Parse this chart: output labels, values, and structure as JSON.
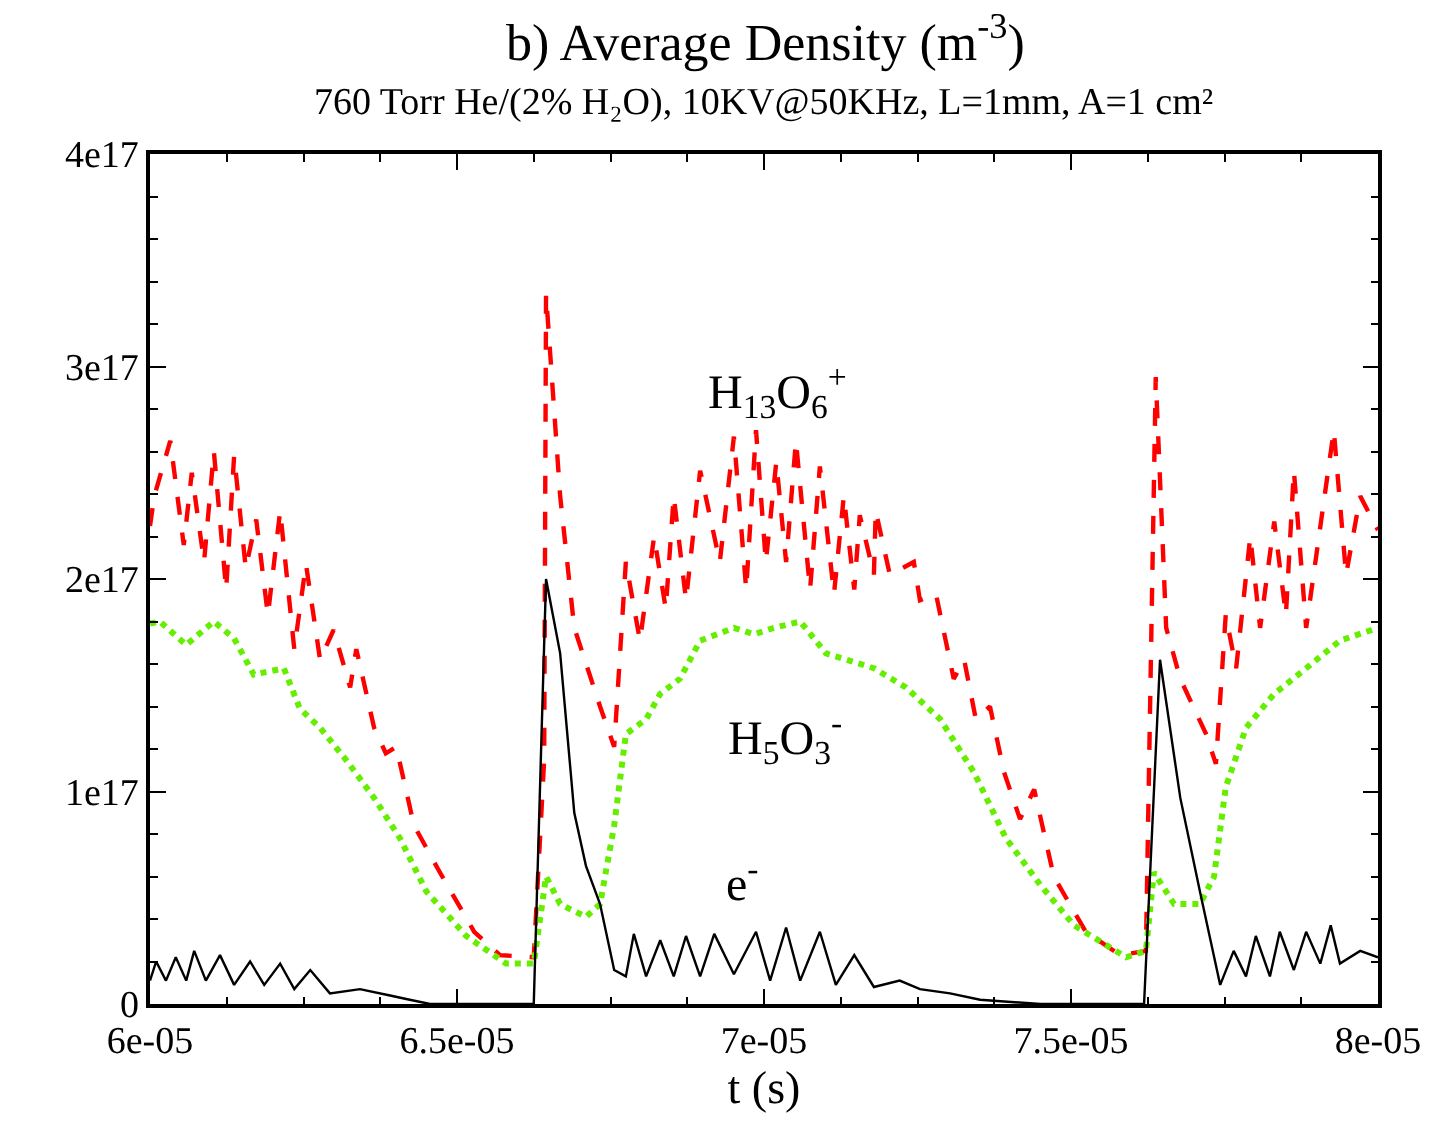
{
  "chart_data": {
    "type": "line",
    "title": "b) Average Density (m$^{-3}$)",
    "subtitle": "760 Torr He/(2% H₂O), 10KV@50KHz, L=1mm, A=1 cm²",
    "xlabel": "t (s)",
    "xlim": [
      6e-05,
      8e-05
    ],
    "xticks": [
      {
        "value": 6e-05,
        "label": "6e-05"
      },
      {
        "value": 6.5e-05,
        "label": "6.5e-05"
      },
      {
        "value": 7e-05,
        "label": "7e-05"
      },
      {
        "value": 7.5e-05,
        "label": "7.5e-05"
      },
      {
        "value": 8e-05,
        "label": "8e-05"
      }
    ],
    "ylim": [
      0,
      4e+17
    ],
    "yticks": [
      0,
      {
        "value": 1e+17,
        "label": "1e17"
      },
      {
        "value": 2e+17,
        "label": "2e17"
      },
      {
        "value": 3e+17,
        "label": "3e17"
      },
      {
        "value": 4e+17,
        "label": "4e17"
      }
    ],
    "grid": false,
    "legend": false,
    "marker": "none",
    "series": [
      {
        "name": "H$_{13}$O$_{6}$$^{+}$",
        "color": "#ff0000",
        "line_style": "dashed",
        "x": [
          6e-05,
          6.007e-05,
          6.033e-05,
          6.055e-05,
          6.068e-05,
          6.088e-05,
          6.104e-05,
          6.124e-05,
          6.137e-05,
          6.156e-05,
          6.173e-05,
          6.192e-05,
          6.212e-05,
          6.235e-05,
          6.254e-05,
          6.277e-05,
          6.299e-05,
          6.326e-05,
          6.336e-05,
          6.365e-05,
          6.384e-05,
          6.401e-05,
          6.43e-05,
          6.472e-05,
          6.528e-05,
          6.57e-05,
          6.625e-05,
          6.642e-05,
          6.645e-05,
          6.668e-05,
          6.691e-05,
          6.733e-05,
          6.756e-05,
          6.775e-05,
          6.798e-05,
          6.821e-05,
          6.84e-05,
          6.853e-05,
          6.873e-05,
          6.896e-05,
          6.928e-05,
          6.951e-05,
          6.971e-05,
          6.987e-05,
          7.003e-05,
          7.02e-05,
          7.036e-05,
          7.052e-05,
          7.075e-05,
          7.091e-05,
          7.114e-05,
          7.13e-05,
          7.147e-05,
          7.156e-05,
          7.179e-05,
          7.182e-05,
          7.205e-05,
          7.244e-05,
          7.254e-05,
          7.28e-05,
          7.309e-05,
          7.326e-05,
          7.345e-05,
          7.368e-05,
          7.391e-05,
          7.417e-05,
          7.44e-05,
          7.472e-05,
          7.524e-05,
          7.58e-05,
          7.622e-05,
          7.638e-05,
          7.655e-05,
          7.678e-05,
          7.72e-05,
          7.736e-05,
          7.752e-05,
          7.769e-05,
          7.792e-05,
          7.808e-05,
          7.831e-05,
          7.85e-05,
          7.863e-05,
          7.883e-05,
          7.928e-05,
          7.948e-05,
          7.971e-05,
          8e-05
        ],
        "values": [
          2.25e+17,
          2.39e+17,
          2.65e+17,
          2.16e+17,
          2.5e+17,
          2.08e+17,
          2.6e+17,
          1.95e+17,
          2.58e+17,
          2.05e+17,
          2.28e+17,
          1.83e+17,
          2.32e+17,
          1.67e+17,
          2.07e+17,
          1.62e+17,
          1.76e+17,
          1.49e+17,
          1.67e+17,
          1.3e+17,
          1.18e+17,
          1.21e+17,
          8.4e+16,
          6.2e+16,
          3.4e+16,
          2.3e+16,
          2.2e+16,
          1.15e+17,
          3.34e+17,
          2.39e+17,
          1.77e+17,
          1.4e+17,
          1.21e+17,
          2.08e+17,
          1.71e+17,
          2.2e+17,
          1.86e+17,
          2.39e+17,
          1.9e+17,
          2.51e+17,
          2.08e+17,
          2.67e+17,
          1.95e+17,
          2.7e+17,
          2.08e+17,
          2.55e+17,
          2.08e+17,
          2.65e+17,
          1.95e+17,
          2.53e+17,
          1.93e+17,
          2.39e+17,
          1.95e+17,
          2.3e+17,
          2.02e+17,
          2.32e+17,
          2.02e+17,
          2.08e+17,
          1.9e+17,
          1.93e+17,
          1.53e+17,
          1.62e+17,
          1.34e+17,
          1.4e+17,
          1.09e+17,
          8.7e+16,
          1.01e+17,
          6e+16,
          3.4e+16,
          2.3e+16,
          2.5e+16,
          2.95e+17,
          1.77e+17,
          1.53e+17,
          1.27e+17,
          1.13e+17,
          1.83e+17,
          1.58e+17,
          2.2e+17,
          1.77e+17,
          2.27e+17,
          1.83e+17,
          2.51e+17,
          1.77e+17,
          2.7e+17,
          2.02e+17,
          2.39e+17,
          2.23e+17
        ]
      },
      {
        "name": "H$_{5}$O$_{3}$$^{-}$",
        "color": "#66ee00",
        "line_style": "dotted",
        "x": [
          6e-05,
          6.016e-05,
          6.059e-05,
          6.104e-05,
          6.137e-05,
          6.169e-05,
          6.218e-05,
          6.244e-05,
          6.277e-05,
          6.319e-05,
          6.365e-05,
          6.407e-05,
          6.45e-05,
          6.515e-05,
          6.58e-05,
          6.625e-05,
          6.645e-05,
          6.668e-05,
          6.71e-05,
          6.733e-05,
          6.756e-05,
          6.775e-05,
          6.808e-05,
          6.831e-05,
          6.863e-05,
          6.896e-05,
          6.951e-05,
          6.984e-05,
          7.016e-05,
          7.059e-05,
          7.101e-05,
          7.179e-05,
          7.231e-05,
          7.287e-05,
          7.342e-05,
          7.394e-05,
          7.45e-05,
          7.505e-05,
          7.59e-05,
          7.622e-05,
          7.635e-05,
          7.668e-05,
          7.71e-05,
          7.733e-05,
          7.752e-05,
          7.785e-05,
          7.831e-05,
          7.883e-05,
          7.938e-05,
          8e-05
        ],
        "values": [
          1.79e+17,
          1.8e+17,
          1.69e+17,
          1.8e+17,
          1.72e+17,
          1.55e+17,
          1.58e+17,
          1.39e+17,
          1.3e+17,
          1.15e+17,
          9.7e+16,
          7.8e+16,
          5.3e+16,
          3.2e+16,
          1.9e+16,
          1.9e+16,
          6e+16,
          4.7e+16,
          4.1e+16,
          4.7e+16,
          8.4e+16,
          1.27e+17,
          1.34e+17,
          1.46e+17,
          1.53e+17,
          1.71e+17,
          1.77e+17,
          1.74e+17,
          1.77e+17,
          1.8e+17,
          1.65e+17,
          1.58e+17,
          1.49e+17,
          1.34e+17,
          1.09e+17,
          7.8e+16,
          5.6e+16,
          3.7e+16,
          2.2e+16,
          2.5e+16,
          6.2e+16,
          4.7e+16,
          4.7e+16,
          6e+16,
          1.02e+17,
          1.3e+17,
          1.46e+17,
          1.58e+17,
          1.71e+17,
          1.77e+17
        ]
      },
      {
        "name": "e$^{-}$",
        "color": "#000000",
        "line_style": "solid",
        "x": [
          6e-05,
          6.01e-05,
          6.026e-05,
          6.042e-05,
          6.059e-05,
          6.072e-05,
          6.091e-05,
          6.114e-05,
          6.137e-05,
          6.163e-05,
          6.186e-05,
          6.212e-05,
          6.235e-05,
          6.261e-05,
          6.293e-05,
          6.342e-05,
          6.391e-05,
          6.423e-05,
          6.456e-05,
          6.625e-05,
          6.645e-05,
          6.668e-05,
          6.691e-05,
          6.71e-05,
          6.733e-05,
          6.756e-05,
          6.775e-05,
          6.788e-05,
          6.808e-05,
          6.831e-05,
          6.853e-05,
          6.873e-05,
          6.896e-05,
          6.919e-05,
          6.951e-05,
          6.987e-05,
          7.01e-05,
          7.036e-05,
          7.059e-05,
          7.091e-05,
          7.117e-05,
          7.147e-05,
          7.179e-05,
          7.221e-05,
          7.254e-05,
          7.303e-05,
          7.352e-05,
          7.45e-05,
          7.619e-05,
          7.645e-05,
          7.678e-05,
          7.71e-05,
          7.743e-05,
          7.765e-05,
          7.785e-05,
          7.801e-05,
          7.824e-05,
          7.84e-05,
          7.863e-05,
          7.883e-05,
          7.906e-05,
          7.923e-05,
          7.938e-05,
          7.971e-05,
          8e-05
        ],
        "values": [
          1.1e+16,
          2e+16,
          1.1e+16,
          2.2e+16,
          1.1e+16,
          2.5e+16,
          1.1e+16,
          2.3e+16,
          9000000000000000.0,
          2e+16,
          9000000000000000.0,
          1.9e+16,
          7000000000000000.0,
          1.6e+16,
          5000000000000000.0,
          7000000000000000.0,
          4000000000000000.0,
          2000000000000000.0,
          0,
          0,
          2e+17,
          1.65e+17,
          9e+16,
          6.5e+16,
          4.7e+16,
          1.6e+16,
          1.3e+16,
          3.3e+16,
          1.3e+16,
          3e+16,
          1.3e+16,
          3.2e+16,
          1.3e+16,
          3.3e+16,
          1.4e+16,
          3.4e+16,
          1.1e+16,
          3.6e+16,
          1.1e+16,
          3.4e+16,
          9000000000000000.0,
          2.3e+16,
          8000000000000000.0,
          1.1e+16,
          7000000000000000.0,
          5000000000000000.0,
          2000000000000000.0,
          0,
          0,
          1.62e+17,
          9.7e+16,
          5.3e+16,
          9000000000000000.0,
          2.5e+16,
          1.3e+16,
          3.2e+16,
          1.3e+16,
          3.4e+16,
          1.6e+16,
          3.4e+16,
          1.9e+16,
          3.7e+16,
          1.9e+16,
          2.5e+16,
          2.2e+16
        ]
      }
    ]
  }
}
